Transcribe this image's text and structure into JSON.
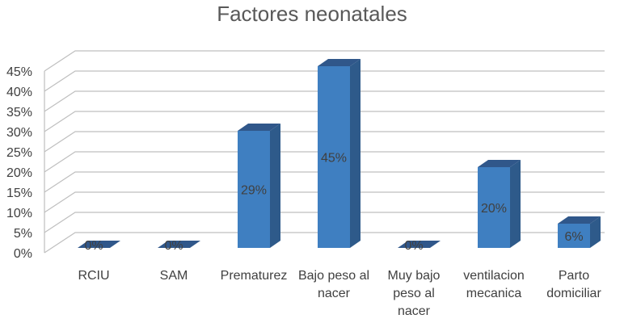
{
  "chart_data": {
    "type": "bar",
    "title": "Factores neonatales",
    "categories": [
      [
        "RCIU"
      ],
      [
        "SAM"
      ],
      [
        "Prematurez"
      ],
      [
        "Bajo peso al",
        "nacer"
      ],
      [
        "Muy bajo",
        "peso al",
        "nacer"
      ],
      [
        "ventilacion",
        "mecanica"
      ],
      [
        "Parto",
        "domiciliar"
      ]
    ],
    "values": [
      0,
      0,
      29,
      45,
      0,
      20,
      6
    ],
    "data_labels": [
      "0%",
      "0%",
      "29%",
      "45%",
      "0%",
      "20%",
      "6%"
    ],
    "yticks": [
      "0%",
      "5%",
      "10%",
      "15%",
      "20%",
      "25%",
      "30%",
      "35%",
      "40%",
      "45%"
    ],
    "ylim": [
      0,
      45
    ],
    "ystep": 5,
    "grid": true,
    "three_d": true,
    "colors": {
      "front": "#3f7fc1",
      "side": "#2e5a8a",
      "top": "#30578a",
      "grid": "#bfbfbf",
      "text": "#404040",
      "title": "#595959"
    }
  }
}
